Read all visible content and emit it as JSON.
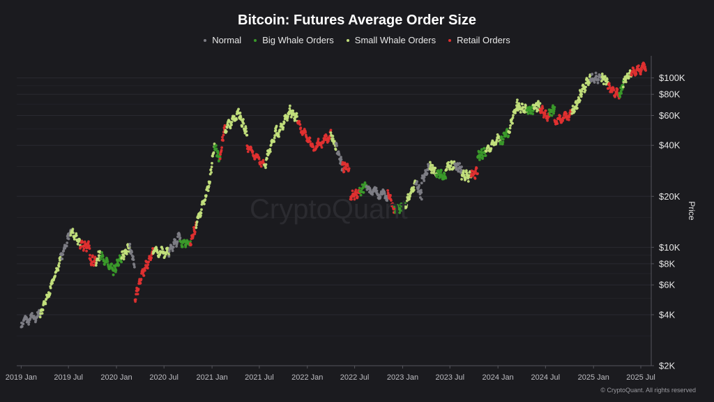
{
  "chart_data": {
    "type": "scatter",
    "title": "Bitcoin: Futures Average Order Size",
    "ylabel": "Price",
    "y_scale": "log",
    "ylim": [
      2000,
      130000
    ],
    "xlim": [
      "2018-12-15",
      "2025-08-10"
    ],
    "x_ticks": [
      "2019-01-01",
      "2019-07-01",
      "2020-01-01",
      "2020-07-01",
      "2021-01-01",
      "2021-07-01",
      "2022-01-01",
      "2022-07-01",
      "2023-01-01",
      "2023-07-01",
      "2024-01-01",
      "2024-07-01",
      "2025-01-01",
      "2025-07-01"
    ],
    "x_tick_labels": [
      "2019 Jan",
      "2019 Jul",
      "2020 Jan",
      "2020 Jul",
      "2021 Jan",
      "2021 Jul",
      "2022 Jan",
      "2022 Jul",
      "2023 Jan",
      "2023 Jul",
      "2024 Jan",
      "2024 Jul",
      "2025 Jan",
      "2025 Jul"
    ],
    "y_ticks": [
      2000,
      4000,
      6000,
      8000,
      10000,
      20000,
      40000,
      60000,
      80000,
      100000
    ],
    "y_tick_labels": [
      "$2K",
      "$4K",
      "$6K",
      "$8K",
      "$10K",
      "$20K",
      "$40K",
      "$60K",
      "$80K",
      "$100K"
    ],
    "grid": "horizontal",
    "legend_position": "top",
    "categories": [
      {
        "key": "normal",
        "name": "Normal",
        "color": "#7d7d85"
      },
      {
        "key": "big",
        "name": "Big Whale Orders",
        "color": "#3a9a2a"
      },
      {
        "key": "small",
        "name": "Small Whale Orders",
        "color": "#c3e07c"
      },
      {
        "key": "retail",
        "name": "Retail Orders",
        "color": "#e03030"
      }
    ],
    "segments": [
      {
        "start": "2019-01-01",
        "end": "2019-03-15",
        "p0": 3600,
        "p1": 4000,
        "cat": "normal"
      },
      {
        "start": "2019-03-15",
        "end": "2019-04-15",
        "p0": 4000,
        "p1": 5300,
        "cat": "small"
      },
      {
        "start": "2019-04-15",
        "end": "2019-06-01",
        "p0": 5300,
        "p1": 8500,
        "cat": "small"
      },
      {
        "start": "2019-06-01",
        "end": "2019-07-10",
        "p0": 8500,
        "p1": 12500,
        "cat": "normal"
      },
      {
        "start": "2019-07-10",
        "end": "2019-08-15",
        "p0": 12500,
        "p1": 10500,
        "cat": "small"
      },
      {
        "start": "2019-08-15",
        "end": "2019-09-20",
        "p0": 10500,
        "p1": 10000,
        "cat": "retail"
      },
      {
        "start": "2019-09-20",
        "end": "2019-10-15",
        "p0": 8500,
        "p1": 8200,
        "cat": "retail"
      },
      {
        "start": "2019-10-15",
        "end": "2019-11-01",
        "p0": 8200,
        "p1": 9300,
        "cat": "small"
      },
      {
        "start": "2019-11-01",
        "end": "2019-12-20",
        "p0": 9000,
        "p1": 7200,
        "cat": "big"
      },
      {
        "start": "2019-12-20",
        "end": "2020-01-20",
        "p0": 7200,
        "p1": 8700,
        "cat": "big"
      },
      {
        "start": "2020-01-20",
        "end": "2020-02-20",
        "p0": 8700,
        "p1": 10200,
        "cat": "small"
      },
      {
        "start": "2020-02-20",
        "end": "2020-03-10",
        "p0": 10000,
        "p1": 8000,
        "cat": "normal"
      },
      {
        "start": "2020-03-12",
        "end": "2020-04-10",
        "p0": 5000,
        "p1": 7000,
        "cat": "retail"
      },
      {
        "start": "2020-04-10",
        "end": "2020-05-20",
        "p0": 7000,
        "p1": 9500,
        "cat": "retail"
      },
      {
        "start": "2020-05-20",
        "end": "2020-07-20",
        "p0": 9500,
        "p1": 9300,
        "cat": "small"
      },
      {
        "start": "2020-07-20",
        "end": "2020-09-01",
        "p0": 9300,
        "p1": 11800,
        "cat": "normal"
      },
      {
        "start": "2020-09-01",
        "end": "2020-10-10",
        "p0": 10500,
        "p1": 10700,
        "cat": "big"
      },
      {
        "start": "2020-10-10",
        "end": "2020-11-01",
        "p0": 10800,
        "p1": 13500,
        "cat": "retail"
      },
      {
        "start": "2020-11-01",
        "end": "2020-12-20",
        "p0": 13500,
        "p1": 23000,
        "cat": "small"
      },
      {
        "start": "2020-12-20",
        "end": "2021-01-10",
        "p0": 23000,
        "p1": 40000,
        "cat": "small"
      },
      {
        "start": "2021-01-10",
        "end": "2021-02-01",
        "p0": 40000,
        "p1": 33000,
        "cat": "big"
      },
      {
        "start": "2021-02-01",
        "end": "2021-02-20",
        "p0": 33000,
        "p1": 55000,
        "cat": "retail"
      },
      {
        "start": "2021-02-20",
        "end": "2021-04-15",
        "p0": 50000,
        "p1": 62000,
        "cat": "small"
      },
      {
        "start": "2021-04-15",
        "end": "2021-05-15",
        "p0": 60000,
        "p1": 47000,
        "cat": "small"
      },
      {
        "start": "2021-05-15",
        "end": "2021-07-20",
        "p0": 40000,
        "p1": 30000,
        "cat": "retail"
      },
      {
        "start": "2021-07-20",
        "end": "2021-09-05",
        "p0": 30000,
        "p1": 50000,
        "cat": "small"
      },
      {
        "start": "2021-09-05",
        "end": "2021-10-20",
        "p0": 45000,
        "p1": 62000,
        "cat": "small"
      },
      {
        "start": "2021-10-20",
        "end": "2021-11-25",
        "p0": 65000,
        "p1": 57000,
        "cat": "small"
      },
      {
        "start": "2021-11-25",
        "end": "2022-01-20",
        "p0": 54000,
        "p1": 40000,
        "cat": "retail"
      },
      {
        "start": "2022-01-20",
        "end": "2022-04-01",
        "p0": 38000,
        "p1": 46000,
        "cat": "retail"
      },
      {
        "start": "2022-04-01",
        "end": "2022-04-20",
        "p0": 46000,
        "p1": 40000,
        "cat": "small"
      },
      {
        "start": "2022-04-20",
        "end": "2022-05-15",
        "p0": 40000,
        "p1": 30000,
        "cat": "normal"
      },
      {
        "start": "2022-05-15",
        "end": "2022-06-10",
        "p0": 30000,
        "p1": 29000,
        "cat": "retail"
      },
      {
        "start": "2022-06-15",
        "end": "2022-07-20",
        "p0": 20000,
        "p1": 21000,
        "cat": "retail"
      },
      {
        "start": "2022-07-20",
        "end": "2022-08-15",
        "p0": 21000,
        "p1": 23500,
        "cat": "big"
      },
      {
        "start": "2022-08-15",
        "end": "2022-11-05",
        "p0": 22000,
        "p1": 20000,
        "cat": "normal"
      },
      {
        "start": "2022-11-05",
        "end": "2022-12-01",
        "p0": 21000,
        "p1": 16500,
        "cat": "retail"
      },
      {
        "start": "2022-12-01",
        "end": "2023-01-10",
        "p0": 16800,
        "p1": 17500,
        "cat": "big"
      },
      {
        "start": "2023-01-10",
        "end": "2023-02-20",
        "p0": 17500,
        "p1": 24000,
        "cat": "small"
      },
      {
        "start": "2023-02-20",
        "end": "2023-03-15",
        "p0": 24000,
        "p1": 20000,
        "cat": "normal"
      },
      {
        "start": "2023-03-15",
        "end": "2023-04-15",
        "p0": 25000,
        "p1": 30000,
        "cat": "normal"
      },
      {
        "start": "2023-04-15",
        "end": "2023-05-10",
        "p0": 30000,
        "p1": 27500,
        "cat": "small"
      },
      {
        "start": "2023-05-10",
        "end": "2023-06-15",
        "p0": 27500,
        "p1": 26000,
        "cat": "big"
      },
      {
        "start": "2023-06-15",
        "end": "2023-07-20",
        "p0": 30000,
        "p1": 30200,
        "cat": "small"
      },
      {
        "start": "2023-07-20",
        "end": "2023-08-15",
        "p0": 30000,
        "p1": 29200,
        "cat": "normal"
      },
      {
        "start": "2023-08-15",
        "end": "2023-09-20",
        "p0": 27000,
        "p1": 26000,
        "cat": "small"
      },
      {
        "start": "2023-09-20",
        "end": "2023-10-15",
        "p0": 26500,
        "p1": 28000,
        "cat": "retail"
      },
      {
        "start": "2023-10-15",
        "end": "2023-11-15",
        "p0": 34000,
        "p1": 37000,
        "cat": "big"
      },
      {
        "start": "2023-11-15",
        "end": "2024-01-10",
        "p0": 37000,
        "p1": 45000,
        "cat": "small"
      },
      {
        "start": "2024-01-10",
        "end": "2024-02-10",
        "p0": 42000,
        "p1": 48000,
        "cat": "big"
      },
      {
        "start": "2024-02-10",
        "end": "2024-03-15",
        "p0": 48000,
        "p1": 71000,
        "cat": "small"
      },
      {
        "start": "2024-03-15",
        "end": "2024-04-20",
        "p0": 68000,
        "p1": 64000,
        "cat": "small"
      },
      {
        "start": "2024-04-20",
        "end": "2024-05-15",
        "p0": 63000,
        "p1": 66000,
        "cat": "big"
      },
      {
        "start": "2024-05-15",
        "end": "2024-06-10",
        "p0": 67000,
        "p1": 69000,
        "cat": "small"
      },
      {
        "start": "2024-06-10",
        "end": "2024-07-15",
        "p0": 66000,
        "p1": 57000,
        "cat": "retail"
      },
      {
        "start": "2024-07-15",
        "end": "2024-08-05",
        "p0": 62000,
        "p1": 66000,
        "cat": "big"
      },
      {
        "start": "2024-08-05",
        "end": "2024-10-10",
        "p0": 55000,
        "p1": 61000,
        "cat": "retail"
      },
      {
        "start": "2024-10-10",
        "end": "2024-11-10",
        "p0": 62000,
        "p1": 76000,
        "cat": "small"
      },
      {
        "start": "2024-11-10",
        "end": "2024-12-20",
        "p0": 80000,
        "p1": 100000,
        "cat": "small"
      },
      {
        "start": "2024-12-20",
        "end": "2025-02-01",
        "p0": 98000,
        "p1": 101000,
        "cat": "normal"
      },
      {
        "start": "2025-02-01",
        "end": "2025-02-25",
        "p0": 100000,
        "p1": 96000,
        "cat": "small"
      },
      {
        "start": "2025-02-25",
        "end": "2025-04-10",
        "p0": 88000,
        "p1": 80000,
        "cat": "retail"
      },
      {
        "start": "2025-04-10",
        "end": "2025-04-25",
        "p0": 78000,
        "p1": 92000,
        "cat": "big"
      },
      {
        "start": "2025-04-25",
        "end": "2025-05-25",
        "p0": 94000,
        "p1": 107000,
        "cat": "small"
      },
      {
        "start": "2025-05-25",
        "end": "2025-07-20",
        "p0": 105000,
        "p1": 118000,
        "cat": "retail"
      }
    ]
  },
  "watermark": "CryptoQuant",
  "footer": "© CryptoQuant. All rights reserved"
}
